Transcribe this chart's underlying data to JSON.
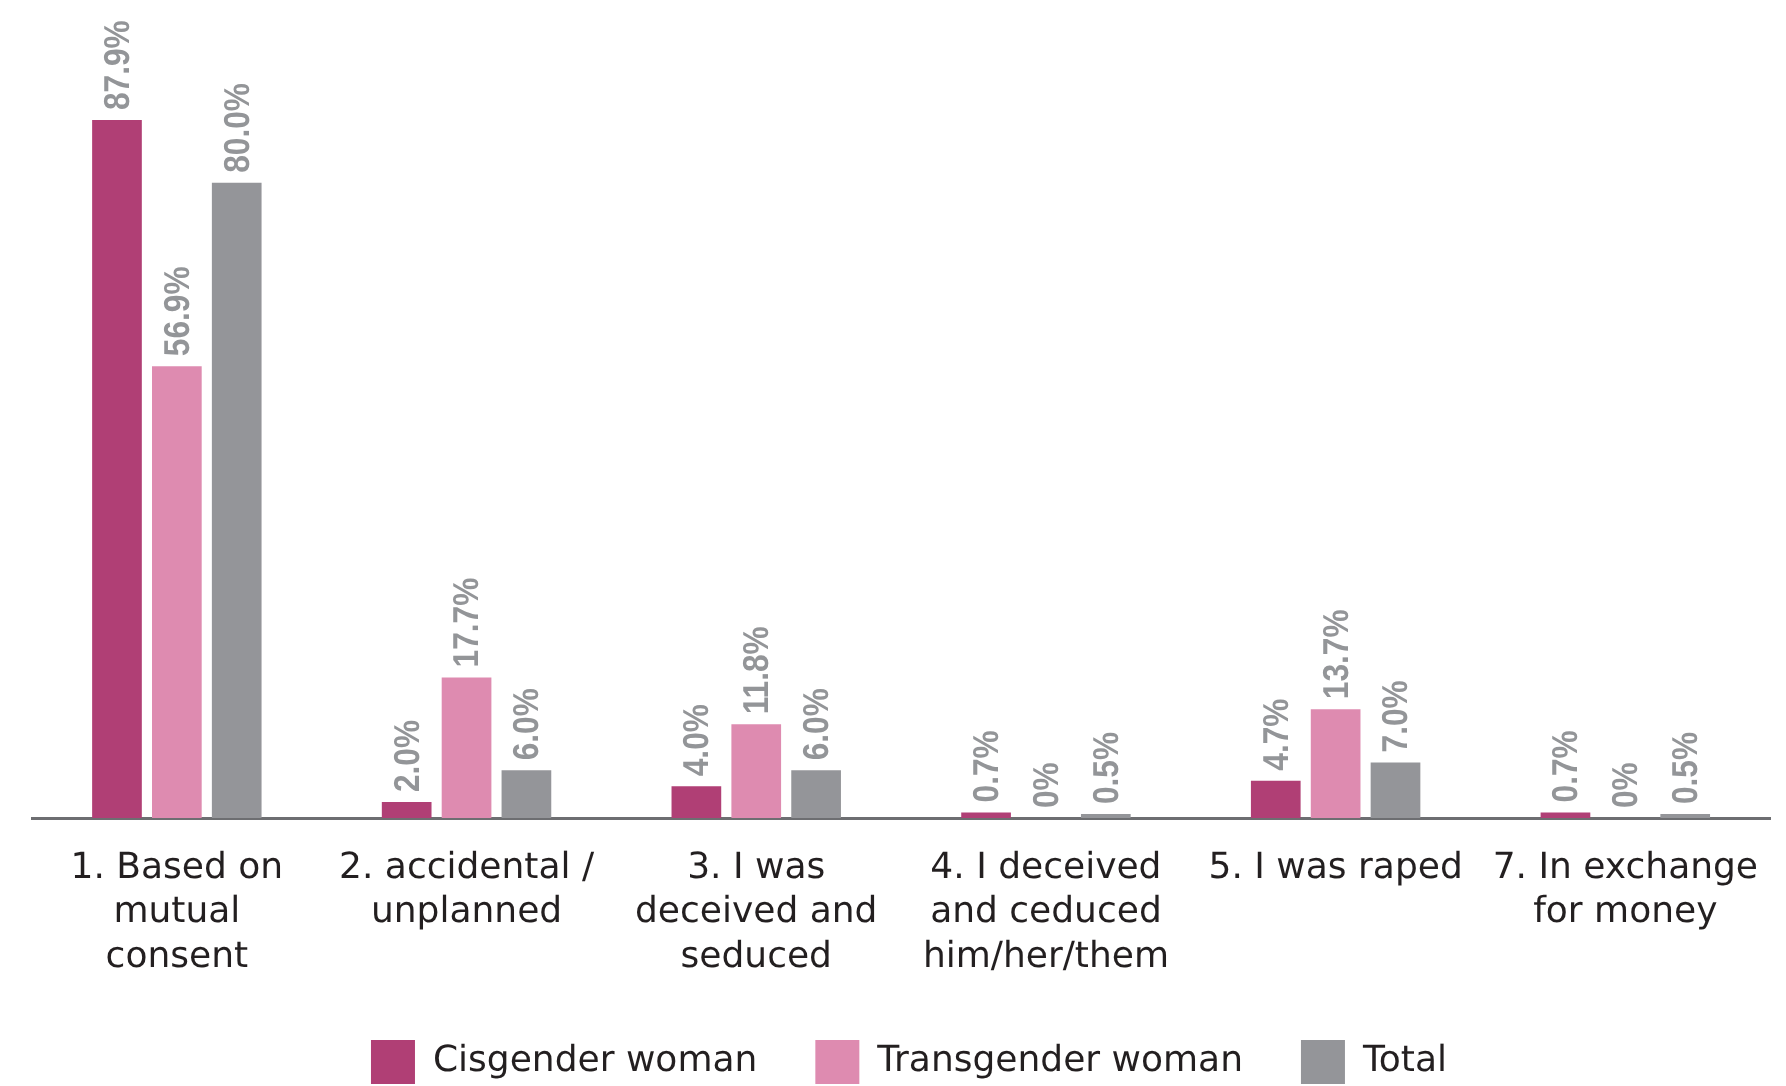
{
  "chart_data": {
    "type": "bar",
    "categories": [
      "1. Based on mutual consent",
      "2. accidental / unplanned",
      "3. I was deceived and seduced",
      "4. I deceived and ceduced him/her/them",
      "5. I was raped",
      "7. In exchange for money"
    ],
    "series": [
      {
        "name": "Cisgender woman",
        "color": "#b03f75",
        "values": [
          87.9,
          2.0,
          4.0,
          0.7,
          4.7,
          0.7
        ],
        "value_labels": [
          "87.9%",
          "2.0%",
          "4.0%",
          "0.7%",
          "4.7%",
          "0.7%"
        ]
      },
      {
        "name": "Transgender woman",
        "color": "#de8bb0",
        "values": [
          56.9,
          17.7,
          11.8,
          0,
          13.7,
          0
        ],
        "value_labels": [
          "56.9%",
          "17.7%",
          "11.8%",
          "0%",
          "13.7%",
          "0%"
        ]
      },
      {
        "name": "Total",
        "color": "#949599",
        "values": [
          80.0,
          6.0,
          6.0,
          0.5,
          7.0,
          0.5
        ],
        "value_labels": [
          "80.0%",
          "6.0%",
          "6.0%",
          "0.5%",
          "7.0%",
          "0.5%"
        ]
      }
    ],
    "legend": "bottom"
  }
}
